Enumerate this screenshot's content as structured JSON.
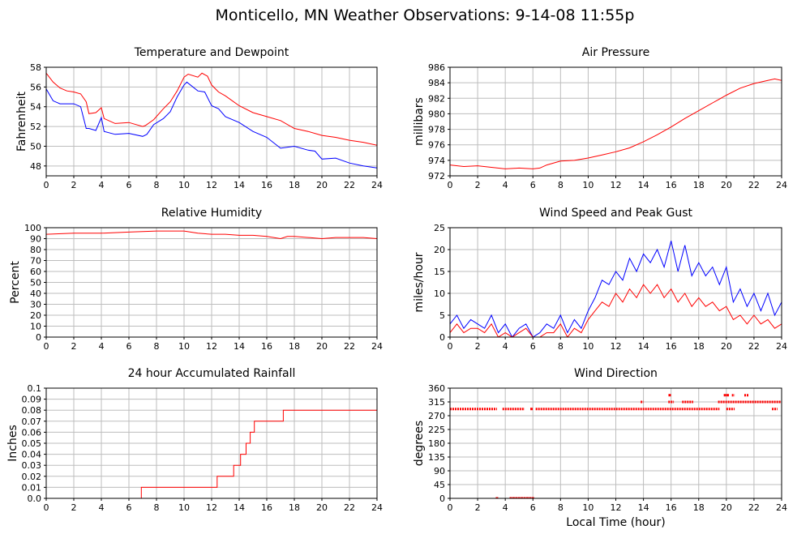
{
  "title": "Monticello, MN Weather Observations: 9-14-08 11:55p",
  "chart_data": [
    {
      "id": "temp",
      "type": "line",
      "title": "Temperature and Dewpoint",
      "xlabel": "",
      "ylabel": "Fahrenheit",
      "xlim": [
        0,
        24
      ],
      "ylim": [
        47,
        58
      ],
      "yticks": [
        48,
        50,
        52,
        54,
        56,
        58
      ],
      "xticks": [
        0,
        2,
        4,
        6,
        8,
        10,
        12,
        14,
        16,
        18,
        20,
        22,
        24
      ],
      "grid": true,
      "series": [
        {
          "color": "#ff0000",
          "x": [
            0,
            0.5,
            1,
            1.5,
            2,
            2.5,
            2.9,
            3.1,
            3.6,
            4,
            4.2,
            5,
            6,
            7,
            7.2,
            7.8,
            8.5,
            9,
            9.5,
            10,
            10.3,
            11,
            11.3,
            11.7,
            12,
            12.5,
            13,
            14,
            15,
            16,
            17,
            18,
            19,
            20,
            21,
            22,
            23,
            24
          ],
          "values": [
            57.4,
            56.5,
            55.9,
            55.6,
            55.5,
            55.3,
            54.5,
            53.3,
            53.4,
            53.9,
            52.8,
            52.3,
            52.4,
            52.0,
            52.1,
            52.7,
            53.8,
            54.5,
            55.6,
            57.0,
            57.3,
            57.0,
            57.4,
            57.1,
            56.2,
            55.5,
            55.1,
            54.1,
            53.4,
            53.0,
            52.6,
            51.8,
            51.5,
            51.1,
            50.9,
            50.6,
            50.4,
            50.1
          ]
        },
        {
          "color": "#0000ff",
          "x": [
            0,
            0.5,
            1,
            2,
            2.5,
            2.9,
            3.1,
            3.6,
            4,
            4.2,
            5,
            6,
            7,
            7.3,
            7.8,
            8.5,
            9,
            9.5,
            10,
            10.2,
            11,
            11.5,
            12,
            12.5,
            13,
            14,
            15,
            16,
            17,
            18,
            19,
            19.5,
            20,
            21,
            22,
            23,
            24
          ],
          "values": [
            55.8,
            54.6,
            54.3,
            54.3,
            54.0,
            51.8,
            51.8,
            51.6,
            52.9,
            51.5,
            51.2,
            51.3,
            51.0,
            51.2,
            52.2,
            52.8,
            53.5,
            55.0,
            56.2,
            56.5,
            55.6,
            55.5,
            54.1,
            53.8,
            53.0,
            52.4,
            51.5,
            50.9,
            49.8,
            50.0,
            49.6,
            49.5,
            48.7,
            48.8,
            48.3,
            48.0,
            47.8
          ]
        }
      ]
    },
    {
      "id": "pressure",
      "type": "line",
      "title": "Air Pressure",
      "xlabel": "",
      "ylabel": "millibars",
      "xlim": [
        0,
        24
      ],
      "ylim": [
        972,
        986
      ],
      "yticks": [
        972,
        974,
        976,
        978,
        980,
        982,
        984,
        986
      ],
      "xticks": [
        0,
        2,
        4,
        6,
        8,
        10,
        12,
        14,
        16,
        18,
        20,
        22,
        24
      ],
      "grid": true,
      "series": [
        {
          "color": "#ff0000",
          "x": [
            0,
            1,
            2,
            3,
            4,
            5,
            6,
            6.5,
            7,
            8,
            9,
            10,
            11,
            12,
            13,
            14,
            15,
            16,
            17,
            18,
            19,
            20,
            21,
            22,
            23,
            23.5,
            24
          ],
          "values": [
            973.4,
            973.2,
            973.3,
            973.1,
            972.9,
            973.0,
            972.9,
            973.0,
            973.4,
            973.9,
            974.0,
            974.3,
            974.7,
            975.1,
            975.6,
            976.4,
            977.3,
            978.3,
            979.4,
            980.4,
            981.4,
            982.4,
            983.3,
            983.9,
            984.3,
            984.5,
            984.3
          ]
        }
      ]
    },
    {
      "id": "rh",
      "type": "line",
      "title": "Relative Humidity",
      "xlabel": "",
      "ylabel": "Percent",
      "xlim": [
        0,
        24
      ],
      "ylim": [
        0,
        100
      ],
      "yticks": [
        0,
        10,
        20,
        30,
        40,
        50,
        60,
        70,
        80,
        90,
        100
      ],
      "xticks": [
        0,
        2,
        4,
        6,
        8,
        10,
        12,
        14,
        16,
        18,
        20,
        22,
        24
      ],
      "grid": true,
      "series": [
        {
          "color": "#ff0000",
          "x": [
            0,
            2,
            4,
            6,
            8,
            9,
            10,
            11,
            12,
            13,
            14,
            15,
            16,
            17,
            17.5,
            18,
            19,
            20,
            21,
            22,
            23,
            24
          ],
          "values": [
            94,
            95,
            95,
            96,
            97,
            97,
            97,
            95,
            94,
            94,
            93,
            93,
            92,
            90,
            92,
            92,
            91,
            90,
            91,
            91,
            91,
            90
          ]
        }
      ]
    },
    {
      "id": "wind",
      "type": "line",
      "title": "Wind Speed and Peak Gust",
      "xlabel": "",
      "ylabel": "miles/hour",
      "xlim": [
        0,
        24
      ],
      "ylim": [
        0,
        25
      ],
      "yticks": [
        0,
        5,
        10,
        15,
        20,
        25
      ],
      "xticks": [
        0,
        2,
        4,
        6,
        8,
        10,
        12,
        14,
        16,
        18,
        20,
        22,
        24
      ],
      "grid": true,
      "series": [
        {
          "color": "#0000ff",
          "x": [
            0,
            0.5,
            1,
            1.5,
            2,
            2.5,
            3,
            3.5,
            4,
            4.5,
            5,
            5.5,
            6,
            6.5,
            7,
            7.5,
            8,
            8.5,
            9,
            9.5,
            10,
            10.5,
            11,
            11.5,
            12,
            12.5,
            13,
            13.5,
            14,
            14.5,
            15,
            15.5,
            16,
            16.5,
            17,
            17.5,
            18,
            18.5,
            19,
            19.5,
            20,
            20.5,
            21,
            21.5,
            22,
            22.5,
            23,
            23.5,
            24
          ],
          "values": [
            3,
            5,
            2,
            4,
            3,
            2,
            5,
            1,
            3,
            0,
            2,
            3,
            0,
            1,
            3,
            2,
            5,
            1,
            4,
            2,
            6,
            9,
            13,
            12,
            15,
            13,
            18,
            15,
            19,
            17,
            20,
            16,
            22,
            15,
            21,
            14,
            17,
            14,
            16,
            12,
            16,
            8,
            11,
            7,
            10,
            6,
            10,
            5,
            8
          ]
        },
        {
          "color": "#ff0000",
          "x": [
            0,
            0.5,
            1,
            1.5,
            2,
            2.5,
            3,
            3.5,
            4,
            4.5,
            5,
            5.5,
            6,
            6.5,
            7,
            7.5,
            8,
            8.5,
            9,
            9.5,
            10,
            10.5,
            11,
            11.5,
            12,
            12.5,
            13,
            13.5,
            14,
            14.5,
            15,
            15.5,
            16,
            16.5,
            17,
            17.5,
            18,
            18.5,
            19,
            19.5,
            20,
            20.5,
            21,
            21.5,
            22,
            22.5,
            23,
            23.5,
            24
          ],
          "values": [
            1,
            3,
            1,
            2,
            2,
            1,
            3,
            0,
            1,
            0,
            1,
            2,
            0,
            0,
            1,
            1,
            3,
            0,
            2,
            1,
            4,
            6,
            8,
            7,
            10,
            8,
            11,
            9,
            12,
            10,
            12,
            9,
            11,
            8,
            10,
            7,
            9,
            7,
            8,
            6,
            7,
            4,
            5,
            3,
            5,
            3,
            4,
            2,
            3
          ]
        }
      ]
    },
    {
      "id": "rain",
      "type": "line",
      "title": "24 hour Accumulated Rainfall",
      "xlabel": "",
      "ylabel": "Inches",
      "xlim": [
        0,
        24
      ],
      "ylim": [
        0,
        0.1
      ],
      "yticks": [
        0.0,
        0.01,
        0.02,
        0.03,
        0.04,
        0.05,
        0.06,
        0.07,
        0.08,
        0.09,
        0.1
      ],
      "ytick_labels": [
        "0.0",
        "0.01",
        "0.02",
        "0.03",
        "0.04",
        "0.05",
        "0.06",
        "0.07",
        "0.08",
        "0.09",
        "0.1"
      ],
      "xticks": [
        0,
        2,
        4,
        6,
        8,
        10,
        12,
        14,
        16,
        18,
        20,
        22,
        24
      ],
      "grid": true,
      "series": [
        {
          "color": "#ff0000",
          "step": true,
          "x": [
            0,
            6.9,
            12.4,
            13.6,
            14.1,
            14.5,
            14.8,
            15.1,
            17.2,
            24
          ],
          "values": [
            0,
            0.01,
            0.02,
            0.03,
            0.04,
            0.05,
            0.06,
            0.07,
            0.08,
            0.08
          ]
        }
      ]
    },
    {
      "id": "winddir",
      "type": "scatter",
      "title": "Wind Direction",
      "xlabel": "Local Time (hour)",
      "ylabel": "degrees",
      "xlim": [
        0,
        24
      ],
      "ylim": [
        0,
        360
      ],
      "yticks": [
        0,
        45,
        90,
        135,
        180,
        225,
        270,
        315,
        360
      ],
      "xticks": [
        0,
        2,
        4,
        6,
        8,
        10,
        12,
        14,
        16,
        18,
        20,
        22,
        24
      ],
      "grid": true,
      "series": [
        {
          "color": "#ff0000",
          "segments": [
            {
              "y": 292,
              "x_from": 0,
              "x_to": 3.4
            },
            {
              "y": 292,
              "x_from": 3.8,
              "x_to": 5.4
            },
            {
              "y": 292,
              "x_from": 6.2,
              "x_to": 19.5
            },
            {
              "y": 292,
              "x_from": 20.0,
              "x_to": 20.6
            },
            {
              "y": 292,
              "x_from": 23.3,
              "x_to": 23.7
            },
            {
              "y": 315,
              "x_from": 13.8,
              "x_to": 14.0
            },
            {
              "y": 315,
              "x_from": 15.8,
              "x_to": 16.2
            },
            {
              "y": 315,
              "x_from": 16.8,
              "x_to": 17.6
            },
            {
              "y": 315,
              "x_from": 19.4,
              "x_to": 24.0
            },
            {
              "y": 337,
              "x_from": 20.4,
              "x_to": 20.6
            },
            {
              "y": 337,
              "x_from": 21.3,
              "x_to": 21.6
            }
          ],
          "x": [
            3.4,
            4.4,
            4.6,
            4.8,
            5.0,
            5.2,
            5.4,
            5.6,
            5.8,
            6.0,
            5.9,
            15.9,
            19.9,
            20.1
          ],
          "values": [
            0,
            0,
            0,
            0,
            0,
            0,
            0,
            0,
            0,
            0,
            292,
            337,
            337,
            337
          ]
        }
      ]
    }
  ]
}
